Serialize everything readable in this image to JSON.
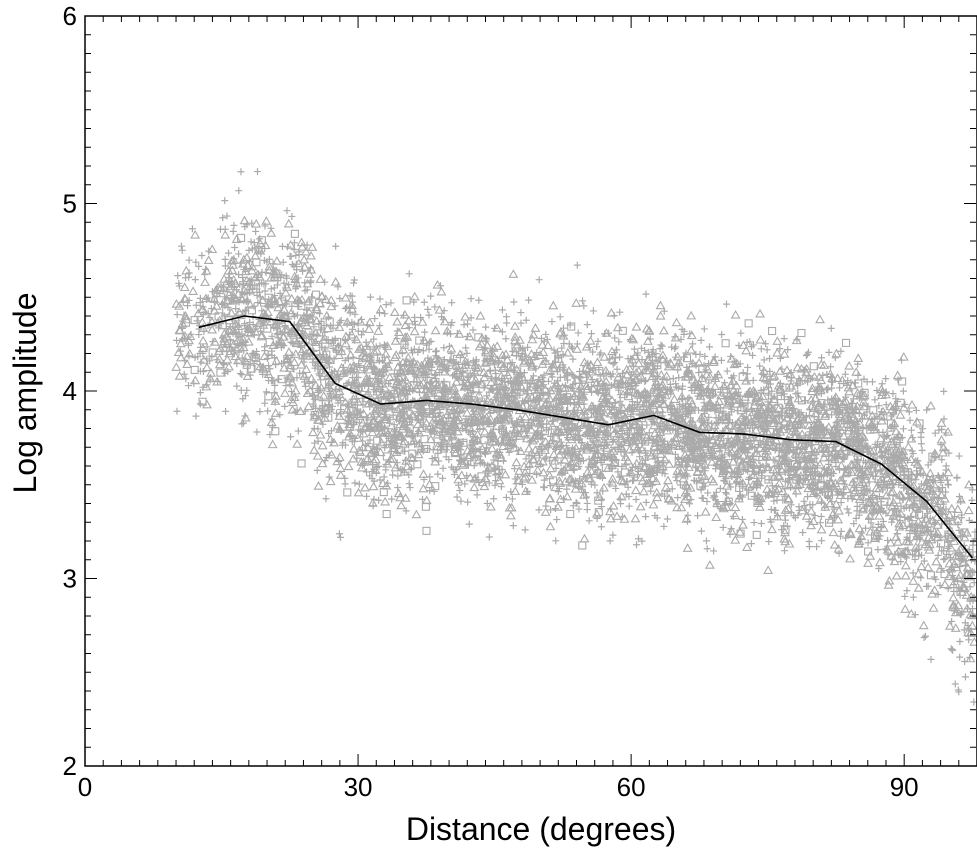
{
  "chart_data": {
    "type": "scatter",
    "title": "",
    "xlabel": "Distance (degrees)",
    "ylabel": "Log amplitude",
    "xlim": [
      0,
      98
    ],
    "ylim": [
      2,
      6
    ],
    "xticks": [
      0,
      30,
      60,
      90
    ],
    "yticks": [
      2,
      3,
      4,
      5,
      6
    ],
    "xtick_labels": [
      "0",
      "30",
      "60",
      "90"
    ],
    "ytick_labels": [
      "2",
      "3",
      "4",
      "5",
      "6"
    ],
    "grid": false,
    "legend": "none",
    "scatter_color": "#aaaaaa",
    "line_color": "#000000",
    "scatter_markers": [
      "plus",
      "triangle",
      "square"
    ],
    "scatter_summary": [
      {
        "x_range": [
          10,
          15
        ],
        "mean": 4.35,
        "spread": 0.22,
        "count": 150
      },
      {
        "x_range": [
          15,
          20
        ],
        "mean": 4.42,
        "spread": 0.26,
        "count": 280
      },
      {
        "x_range": [
          20,
          25
        ],
        "mean": 4.35,
        "spread": 0.26,
        "count": 300
      },
      {
        "x_range": [
          25,
          30
        ],
        "mean": 4.05,
        "spread": 0.26,
        "count": 320
      },
      {
        "x_range": [
          30,
          35
        ],
        "mean": 3.93,
        "spread": 0.24,
        "count": 380
      },
      {
        "x_range": [
          35,
          40
        ],
        "mean": 3.95,
        "spread": 0.24,
        "count": 380
      },
      {
        "x_range": [
          40,
          45
        ],
        "mean": 3.93,
        "spread": 0.24,
        "count": 380
      },
      {
        "x_range": [
          45,
          50
        ],
        "mean": 3.9,
        "spread": 0.24,
        "count": 380
      },
      {
        "x_range": [
          50,
          55
        ],
        "mean": 3.85,
        "spread": 0.24,
        "count": 380
      },
      {
        "x_range": [
          55,
          60
        ],
        "mean": 3.83,
        "spread": 0.24,
        "count": 380
      },
      {
        "x_range": [
          60,
          65
        ],
        "mean": 3.86,
        "spread": 0.25,
        "count": 380
      },
      {
        "x_range": [
          65,
          70
        ],
        "mean": 3.79,
        "spread": 0.24,
        "count": 400
      },
      {
        "x_range": [
          70,
          75
        ],
        "mean": 3.77,
        "spread": 0.24,
        "count": 400
      },
      {
        "x_range": [
          75,
          80
        ],
        "mean": 3.74,
        "spread": 0.24,
        "count": 400
      },
      {
        "x_range": [
          80,
          85
        ],
        "mean": 3.73,
        "spread": 0.24,
        "count": 400
      },
      {
        "x_range": [
          85,
          90
        ],
        "mean": 3.6,
        "spread": 0.24,
        "count": 380
      },
      {
        "x_range": [
          90,
          95
        ],
        "mean": 3.38,
        "spread": 0.26,
        "count": 300
      },
      {
        "x_range": [
          95,
          98
        ],
        "mean": 3.05,
        "spread": 0.24,
        "count": 160
      }
    ],
    "series": [
      {
        "type": "line",
        "x": [
          12.5,
          17.5,
          22.5,
          27.5,
          32.5,
          37.5,
          42.5,
          47.5,
          52.5,
          57.5,
          62.5,
          67.5,
          72.5,
          77.5,
          82.5,
          87.5,
          92.5,
          97.5
        ],
        "y": [
          4.34,
          4.4,
          4.37,
          4.04,
          3.93,
          3.95,
          3.93,
          3.9,
          3.86,
          3.82,
          3.87,
          3.78,
          3.77,
          3.74,
          3.73,
          3.61,
          3.41,
          3.11
        ]
      }
    ]
  }
}
